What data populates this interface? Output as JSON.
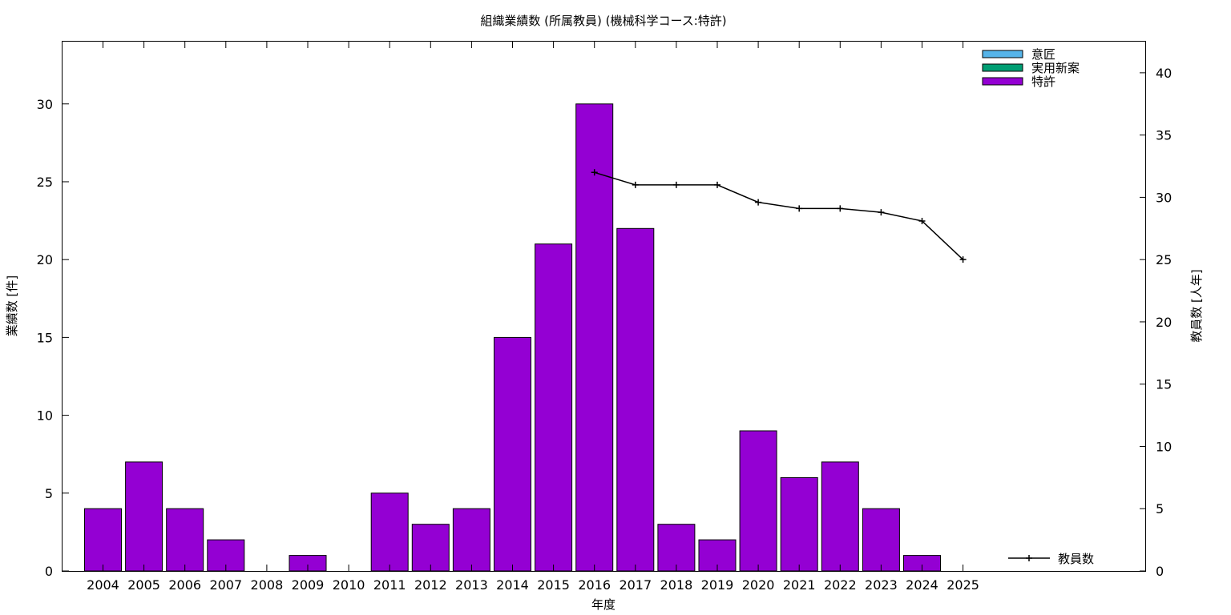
{
  "chart_data": {
    "type": "bar",
    "title": "組織業績数 (所属教員) (機械科学コース:特許)",
    "xlabel": "年度",
    "ylabel": "業績数 [件]",
    "y2label": "教員数 [人年]",
    "categories": [
      "2004",
      "2005",
      "2006",
      "2007",
      "2008",
      "2009",
      "2010",
      "2011",
      "2012",
      "2013",
      "2014",
      "2015",
      "2016",
      "2017",
      "2018",
      "2019",
      "2020",
      "2021",
      "2022",
      "2023",
      "2024",
      "2025"
    ],
    "ylim": [
      0,
      34
    ],
    "y2lim": [
      0,
      42.5
    ],
    "yticks": [
      0,
      5,
      10,
      15,
      20,
      25,
      30
    ],
    "y2ticks": [
      0,
      5,
      10,
      15,
      20,
      25,
      30,
      35,
      40
    ],
    "stacked": true,
    "series": [
      {
        "name": "意匠",
        "color": "#56b4e9",
        "values": [
          0,
          0,
          0,
          0,
          0,
          0,
          0,
          0,
          0,
          0,
          0,
          0,
          0,
          0,
          0,
          0,
          0,
          0,
          0,
          0,
          0,
          0
        ]
      },
      {
        "name": "実用新案",
        "color": "#009e73",
        "values": [
          0,
          0,
          0,
          0,
          0,
          0,
          0,
          0,
          0,
          0,
          0,
          0,
          0,
          0,
          0,
          0,
          0,
          0,
          0,
          0,
          0,
          0
        ]
      },
      {
        "name": "特許",
        "color": "#9400d3",
        "values": [
          4,
          7,
          4,
          2,
          0,
          1,
          0,
          5,
          3,
          4,
          15,
          21,
          30,
          22,
          3,
          2,
          9,
          6,
          7,
          4,
          1,
          0
        ]
      }
    ],
    "line_series": {
      "name": "教員数",
      "axis": "y2",
      "color": "#000000",
      "x": [
        "2016",
        "2017",
        "2018",
        "2019",
        "2020",
        "2021",
        "2022",
        "2023",
        "2024",
        "2025"
      ],
      "values": [
        32,
        31,
        31,
        31,
        29.6,
        29.1,
        29.1,
        28.8,
        28.1,
        25
      ]
    },
    "legend_position": "top-right",
    "line_legend_position": "bottom-right",
    "grid": false
  }
}
